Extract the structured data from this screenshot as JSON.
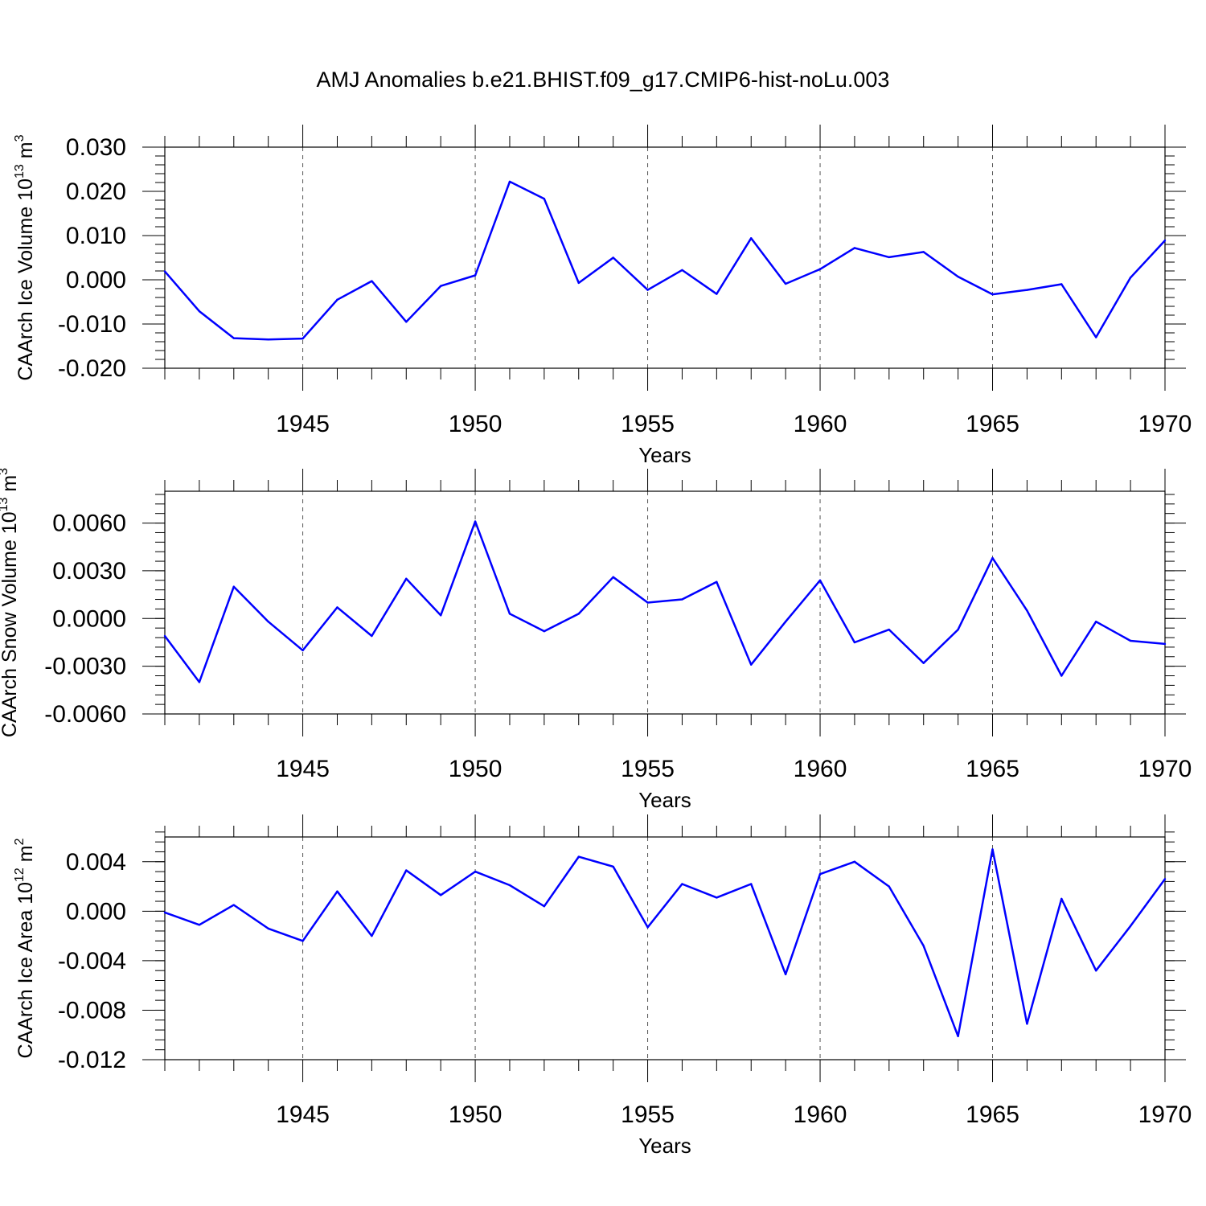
{
  "title": "AMJ Anomalies b.e21.BHIST.f09_g17.CMIP6-hist-noLu.003",
  "chart_data": [
    {
      "type": "line",
      "ylabel": "CAArch Ice Volume 10",
      "ylabel_exp": "13",
      "ylabel_unit": " m",
      "ylabel_unit_exp": "3",
      "xlabel": "Years",
      "xlim": [
        1941,
        1970
      ],
      "ylim": [
        -0.02,
        0.03
      ],
      "x_ticks": [
        1945,
        1950,
        1955,
        1960,
        1965,
        1970
      ],
      "y_ticks": [
        -0.02,
        -0.01,
        0.0,
        0.01,
        0.02,
        0.03
      ],
      "y_tick_labels": [
        "-0.020",
        "-0.010",
        "0.000",
        "0.010",
        "0.020",
        "0.030"
      ],
      "y_minor_step": 0.002,
      "grid": "dashed vertical at major x ticks",
      "color": "#0000ff",
      "x": [
        1941,
        1942,
        1943,
        1944,
        1945,
        1946,
        1947,
        1948,
        1949,
        1950,
        1951,
        1952,
        1953,
        1954,
        1955,
        1956,
        1957,
        1958,
        1959,
        1960,
        1961,
        1962,
        1963,
        1964,
        1965,
        1966,
        1967,
        1968,
        1969,
        1970
      ],
      "values": [
        0.0019,
        -0.0071,
        -0.0132,
        -0.0135,
        -0.0133,
        -0.0045,
        -0.0003,
        -0.0095,
        -0.0014,
        0.001,
        0.0222,
        0.0183,
        -0.0007,
        0.005,
        -0.0023,
        0.0022,
        -0.0032,
        0.0094,
        -0.0009,
        0.0024,
        0.0072,
        0.0051,
        0.0063,
        0.0007,
        -0.0033,
        -0.0023,
        -0.001,
        -0.013,
        0.0005,
        0.0089
      ]
    },
    {
      "type": "line",
      "ylabel": "CAArch Snow Volume 10",
      "ylabel_exp": "13",
      "ylabel_unit": " m",
      "ylabel_unit_exp": "3",
      "xlabel": "Years",
      "xlim": [
        1941,
        1970
      ],
      "ylim": [
        -0.006,
        0.008
      ],
      "x_ticks": [
        1945,
        1950,
        1955,
        1960,
        1965,
        1970
      ],
      "y_ticks": [
        -0.006,
        -0.003,
        0.0,
        0.003,
        0.006
      ],
      "y_tick_labels": [
        "-0.0060",
        "-0.0030",
        "0.0000",
        "0.0030",
        "0.0060"
      ],
      "y_minor_step": 0.0006,
      "grid": "dashed vertical at major x ticks",
      "color": "#0000ff",
      "x": [
        1941,
        1942,
        1943,
        1944,
        1945,
        1946,
        1947,
        1948,
        1949,
        1950,
        1951,
        1952,
        1953,
        1954,
        1955,
        1956,
        1957,
        1958,
        1959,
        1960,
        1961,
        1962,
        1963,
        1964,
        1965,
        1966,
        1967,
        1968,
        1969,
        1970
      ],
      "values": [
        -0.0011,
        -0.004,
        0.002,
        -0.0002,
        -0.002,
        0.0007,
        -0.0011,
        0.0025,
        0.0002,
        0.0061,
        0.0003,
        -0.0008,
        0.0003,
        0.0026,
        0.001,
        0.0012,
        0.0023,
        -0.0029,
        -0.0002,
        0.0024,
        -0.0015,
        -0.0007,
        -0.0028,
        -0.0007,
        0.0038,
        0.0005,
        -0.0036,
        -0.0002,
        -0.0014,
        -0.0016
      ]
    },
    {
      "type": "line",
      "ylabel": "CAArch Ice Area 10",
      "ylabel_exp": "12",
      "ylabel_unit": " m",
      "ylabel_unit_exp": "2",
      "xlabel": "Years",
      "xlim": [
        1941,
        1970
      ],
      "ylim": [
        -0.012,
        0.006
      ],
      "x_ticks": [
        1945,
        1950,
        1955,
        1960,
        1965,
        1970
      ],
      "y_ticks": [
        -0.012,
        -0.008,
        -0.004,
        0.0,
        0.004
      ],
      "y_tick_labels": [
        "-0.012",
        "-0.008",
        "-0.004",
        "0.000",
        "0.004"
      ],
      "y_minor_step": 0.0008,
      "grid": "dashed vertical at major x ticks",
      "color": "#0000ff",
      "x": [
        1941,
        1942,
        1943,
        1944,
        1945,
        1946,
        1947,
        1948,
        1949,
        1950,
        1951,
        1952,
        1953,
        1954,
        1955,
        1956,
        1957,
        1958,
        1959,
        1960,
        1961,
        1962,
        1963,
        1964,
        1965,
        1966,
        1967,
        1968,
        1969,
        1970
      ],
      "values": [
        -0.0001,
        -0.0011,
        0.0005,
        -0.0014,
        -0.0024,
        0.0016,
        -0.002,
        0.0033,
        0.0013,
        0.0032,
        0.0021,
        0.0004,
        0.0044,
        0.0036,
        -0.0013,
        0.0022,
        0.0011,
        0.0022,
        -0.0051,
        0.003,
        0.004,
        0.002,
        -0.0028,
        -0.0101,
        0.005,
        -0.0091,
        0.001,
        -0.0048,
        -0.0012,
        0.0026
      ]
    }
  ]
}
